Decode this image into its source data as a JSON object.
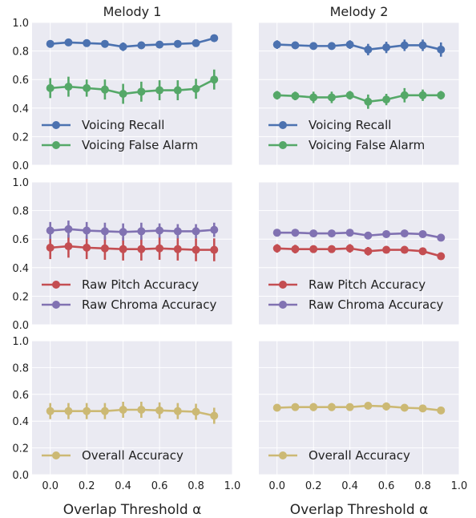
{
  "chart_data": [
    {
      "type": "line",
      "panel": "row1-col1",
      "title": "Melody 1",
      "x": [
        0.0,
        0.1,
        0.2,
        0.3,
        0.4,
        0.5,
        0.6,
        0.7,
        0.8,
        0.9
      ],
      "ylim": [
        0.0,
        1.0
      ],
      "legend_position": "bottom-left",
      "series": [
        {
          "name": "Voicing Recall",
          "color": "#4c72b0",
          "values": [
            0.85,
            0.86,
            0.855,
            0.85,
            0.83,
            0.84,
            0.845,
            0.85,
            0.855,
            0.89
          ],
          "err": [
            0.02,
            0.02,
            0.02,
            0.02,
            0.03,
            0.02,
            0.02,
            0.02,
            0.02,
            0.02
          ]
        },
        {
          "name": "Voicing False Alarm",
          "color": "#55a868",
          "values": [
            0.54,
            0.55,
            0.54,
            0.53,
            0.5,
            0.515,
            0.525,
            0.525,
            0.535,
            0.6
          ],
          "err": [
            0.07,
            0.07,
            0.06,
            0.07,
            0.07,
            0.07,
            0.07,
            0.07,
            0.07,
            0.07
          ]
        }
      ]
    },
    {
      "type": "line",
      "panel": "row1-col2",
      "title": "Melody 2",
      "x": [
        0.0,
        0.1,
        0.2,
        0.3,
        0.4,
        0.5,
        0.6,
        0.7,
        0.8,
        0.9
      ],
      "ylim": [
        0.0,
        1.0
      ],
      "legend_position": "bottom-left",
      "series": [
        {
          "name": "Voicing Recall",
          "color": "#4c72b0",
          "values": [
            0.845,
            0.84,
            0.835,
            0.835,
            0.845,
            0.81,
            0.825,
            0.84,
            0.84,
            0.81
          ],
          "err": [
            0.03,
            0.02,
            0.02,
            0.02,
            0.03,
            0.04,
            0.04,
            0.04,
            0.04,
            0.05
          ]
        },
        {
          "name": "Voicing False Alarm",
          "color": "#55a868",
          "values": [
            0.49,
            0.485,
            0.475,
            0.475,
            0.49,
            0.445,
            0.46,
            0.49,
            0.49,
            0.49
          ],
          "err": [
            0.03,
            0.03,
            0.04,
            0.04,
            0.03,
            0.05,
            0.04,
            0.05,
            0.04,
            0.03
          ]
        }
      ]
    },
    {
      "type": "line",
      "panel": "row2-col1",
      "x": [
        0.0,
        0.1,
        0.2,
        0.3,
        0.4,
        0.5,
        0.6,
        0.7,
        0.8,
        0.9
      ],
      "ylim": [
        0.0,
        1.0
      ],
      "legend_position": "bottom-left",
      "series": [
        {
          "name": "Raw Pitch Accuracy",
          "color": "#c44e52",
          "values": [
            0.54,
            0.55,
            0.54,
            0.535,
            0.53,
            0.53,
            0.535,
            0.53,
            0.525,
            0.525
          ],
          "err": [
            0.08,
            0.08,
            0.08,
            0.08,
            0.08,
            0.08,
            0.08,
            0.08,
            0.08,
            0.08
          ]
        },
        {
          "name": "Raw Chroma Accuracy",
          "color": "#8172b2",
          "values": [
            0.66,
            0.67,
            0.66,
            0.655,
            0.65,
            0.655,
            0.66,
            0.655,
            0.655,
            0.665
          ],
          "err": [
            0.06,
            0.06,
            0.06,
            0.06,
            0.06,
            0.06,
            0.05,
            0.05,
            0.05,
            0.05
          ]
        }
      ]
    },
    {
      "type": "line",
      "panel": "row2-col2",
      "x": [
        0.0,
        0.1,
        0.2,
        0.3,
        0.4,
        0.5,
        0.6,
        0.7,
        0.8,
        0.9
      ],
      "ylim": [
        0.0,
        1.0
      ],
      "legend_position": "bottom-left",
      "series": [
        {
          "name": "Raw Pitch Accuracy",
          "color": "#c44e52",
          "values": [
            0.535,
            0.53,
            0.53,
            0.53,
            0.535,
            0.515,
            0.525,
            0.525,
            0.515,
            0.48
          ],
          "err": [
            0.03,
            0.03,
            0.02,
            0.02,
            0.03,
            0.03,
            0.02,
            0.02,
            0.02,
            0.02
          ]
        },
        {
          "name": "Raw Chroma Accuracy",
          "color": "#8172b2",
          "values": [
            0.645,
            0.645,
            0.64,
            0.64,
            0.645,
            0.625,
            0.635,
            0.64,
            0.635,
            0.61
          ],
          "err": [
            0.02,
            0.02,
            0.02,
            0.02,
            0.02,
            0.02,
            0.02,
            0.02,
            0.02,
            0.02
          ]
        }
      ]
    },
    {
      "type": "line",
      "panel": "row3-col1",
      "x": [
        0.0,
        0.1,
        0.2,
        0.3,
        0.4,
        0.5,
        0.6,
        0.7,
        0.8,
        0.9
      ],
      "ylim": [
        0.0,
        1.0
      ],
      "xlabel": "Overlap Threshold α",
      "xticks": [
        "0.0",
        "0.2",
        "0.4",
        "0.6",
        "0.8",
        "1.0"
      ],
      "legend_position": "bottom-left",
      "series": [
        {
          "name": "Overall Accuracy",
          "color": "#ccb974",
          "values": [
            0.475,
            0.475,
            0.475,
            0.475,
            0.485,
            0.485,
            0.48,
            0.475,
            0.47,
            0.44
          ],
          "err": [
            0.06,
            0.06,
            0.06,
            0.06,
            0.06,
            0.06,
            0.06,
            0.06,
            0.06,
            0.06
          ]
        }
      ]
    },
    {
      "type": "line",
      "panel": "row3-col2",
      "x": [
        0.0,
        0.1,
        0.2,
        0.3,
        0.4,
        0.5,
        0.6,
        0.7,
        0.8,
        0.9
      ],
      "ylim": [
        0.0,
        1.0
      ],
      "xlabel": "Overlap Threshold α",
      "xticks": [
        "0.0",
        "0.2",
        "0.4",
        "0.6",
        "0.8",
        "1.0"
      ],
      "legend_position": "bottom-left",
      "series": [
        {
          "name": "Overall Accuracy",
          "color": "#ccb974",
          "values": [
            0.5,
            0.505,
            0.505,
            0.505,
            0.505,
            0.515,
            0.51,
            0.5,
            0.495,
            0.48
          ],
          "err": [
            0.02,
            0.02,
            0.03,
            0.03,
            0.02,
            0.02,
            0.03,
            0.02,
            0.02,
            0.02
          ]
        }
      ]
    }
  ],
  "yticks": [
    "0.0",
    "0.2",
    "0.4",
    "0.6",
    "0.8",
    "1.0"
  ],
  "style": {
    "panel_background": "#eaeaf2",
    "grid_color": "#ffffff",
    "grid": true
  }
}
